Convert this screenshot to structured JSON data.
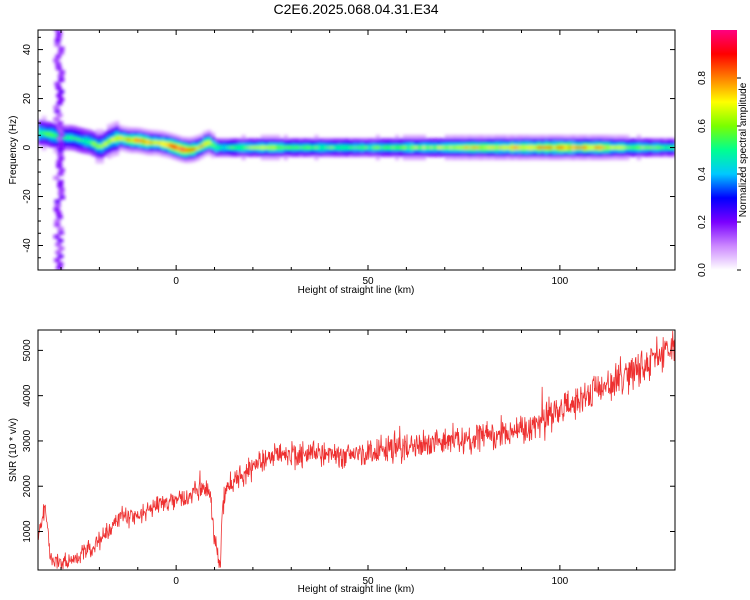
{
  "figure": {
    "title": "C2E6.2025.068.04.31.E34"
  },
  "chart_data": [
    {
      "type": "heatmap",
      "xlabel": "Height of straight line (km)",
      "ylabel": "Frequency (Hz)",
      "xlim": [
        -36,
        130
      ],
      "ylim": [
        -50,
        48
      ],
      "xticks": [
        0,
        50,
        100
      ],
      "yticks": [
        -40,
        -20,
        0,
        20,
        40
      ],
      "colorbar": {
        "label": "Normalized spectral amplitude",
        "range": [
          0,
          1
        ],
        "ticks": [
          "0.0",
          "0.2",
          "0.4",
          "0.6",
          "0.8"
        ],
        "colors": [
          "#ffffff",
          "#cc88ff",
          "#7a00ff",
          "#0000ff",
          "#00c8ff",
          "#00ff90",
          "#7aff00",
          "#ffff00",
          "#ff8000",
          "#ff0000",
          "#ff0080"
        ]
      },
      "ridge": {
        "x": [
          -35,
          -32,
          -30,
          -27,
          -25,
          -22,
          -20,
          -17,
          -15,
          -12,
          -10,
          -7,
          -5,
          -2,
          0,
          2,
          4,
          6,
          8,
          9,
          10,
          12,
          15,
          20,
          25,
          30,
          40,
          50,
          60,
          70,
          80,
          90,
          100,
          110,
          120,
          130
        ],
        "freq": [
          6,
          5,
          4,
          4,
          3,
          2,
          0,
          3,
          4,
          3,
          3,
          2,
          2,
          1,
          0,
          -1,
          -1,
          0,
          2,
          2,
          0,
          0,
          0,
          0,
          0,
          0,
          0,
          0,
          0,
          0,
          0,
          0,
          0,
          0,
          0,
          0
        ],
        "amp": [
          0.55,
          0.6,
          0.5,
          0.5,
          0.5,
          0.55,
          0.6,
          0.65,
          0.7,
          0.8,
          0.85,
          0.8,
          0.7,
          0.85,
          0.9,
          0.9,
          0.85,
          0.7,
          0.75,
          0.7,
          0.6,
          0.5,
          0.55,
          0.6,
          0.65,
          0.55,
          0.55,
          0.55,
          0.6,
          0.65,
          0.7,
          0.75,
          0.8,
          0.75,
          0.6,
          0.5
        ]
      },
      "vertical_streak": {
        "x": -30.5,
        "freq_range": [
          -50,
          48
        ]
      }
    },
    {
      "type": "line",
      "xlabel": "Height of straight line (km)",
      "ylabel": "SNR (10 * v/v)",
      "xlim": [
        -36,
        130
      ],
      "ylim": [
        150,
        5450
      ],
      "xticks": [
        0,
        50,
        100
      ],
      "yticks": [
        1000,
        2000,
        3000,
        4000,
        5000
      ],
      "color": "#ee3030",
      "x": [
        -36,
        -34,
        -33,
        -32,
        -31,
        -30,
        -28,
        -26,
        -24,
        -22,
        -20,
        -18,
        -16,
        -14,
        -12,
        -10,
        -8,
        -6,
        -4,
        -2,
        0,
        2,
        4,
        6,
        8,
        9,
        10,
        11,
        11.5,
        12,
        13,
        14,
        16,
        18,
        20,
        22,
        25,
        30,
        35,
        40,
        45,
        50,
        55,
        60,
        65,
        70,
        75,
        80,
        85,
        90,
        95,
        100,
        105,
        110,
        115,
        120,
        125,
        130
      ],
      "y": [
        800,
        1500,
        600,
        350,
        300,
        300,
        350,
        450,
        550,
        650,
        800,
        1000,
        1200,
        1350,
        1300,
        1350,
        1450,
        1500,
        1600,
        1650,
        1700,
        1750,
        1800,
        1900,
        1950,
        1700,
        900,
        350,
        250,
        1500,
        1900,
        2000,
        2150,
        2300,
        2450,
        2550,
        2650,
        2700,
        2750,
        2750,
        2700,
        2700,
        2800,
        2850,
        2950,
        3000,
        3050,
        3100,
        3150,
        3250,
        3450,
        3650,
        3900,
        4100,
        4350,
        4600,
        4850,
        5050
      ],
      "noise_amplitude": 450
    }
  ]
}
